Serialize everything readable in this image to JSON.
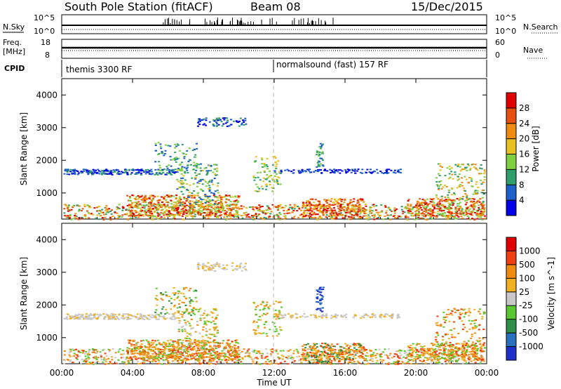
{
  "header": {
    "station": "South Pole Station (fitACF)",
    "beam": "Beam 08",
    "date": "15/Dec/2015"
  },
  "nsky_panel": {
    "left_label": "N.Sky",
    "left_ticks": [
      "10^5",
      "10^0"
    ],
    "right_ticks": [
      "10^5",
      "10^0"
    ],
    "right_label": "N.Search"
  },
  "freq_panel": {
    "left_label_line1": "Freq.",
    "left_label_line2": "[MHz]",
    "left_ticks": [
      "18",
      "8"
    ],
    "right_ticks": [
      "60",
      "0"
    ],
    "right_label": "Nave"
  },
  "cpid_panel": {
    "label": "CPID",
    "segments": [
      "themis 3300 RF",
      "normalsound (fast) 157 RF"
    ]
  },
  "chart_data": [
    {
      "type": "heatmap",
      "title": "",
      "xlabel": "Time UT",
      "ylabel": "Slant Range [km]",
      "x_ticks": [
        "00:00",
        "04:00",
        "08:00",
        "12:00",
        "16:00",
        "20:00",
        "00:00"
      ],
      "y_ticks": [
        "1000",
        "2000",
        "3000",
        "4000"
      ],
      "ylim": [
        200,
        4500
      ],
      "colorbar": {
        "label": "Power [dB]",
        "ticks": [
          "4",
          "8",
          "12",
          "16",
          "20",
          "24",
          "28"
        ],
        "colors": [
          "#0000e6",
          "#1f5fcc",
          "#2e9e6a",
          "#7ed040",
          "#e8c020",
          "#f08a10",
          "#e85010",
          "#e10000"
        ]
      }
    },
    {
      "type": "heatmap",
      "title": "",
      "xlabel": "Time UT",
      "ylabel": "Slant Range [km]",
      "x_ticks": [
        "00:00",
        "04:00",
        "08:00",
        "12:00",
        "16:00",
        "20:00",
        "00:00"
      ],
      "y_ticks": [
        "1000",
        "2000",
        "3000",
        "4000"
      ],
      "ylim": [
        200,
        4500
      ],
      "colorbar": {
        "label": "Velocity [m s^-1]",
        "ticks": [
          "1000",
          "500",
          "100",
          "25",
          "-25",
          "-100",
          "-500",
          "-1000"
        ],
        "colors": [
          "#1d2fc8",
          "#2a6ec0",
          "#2e8e4a",
          "#5ac830",
          "#c8c8c8",
          "#f0b020",
          "#f08a10",
          "#f04010",
          "#e10000"
        ]
      }
    }
  ]
}
